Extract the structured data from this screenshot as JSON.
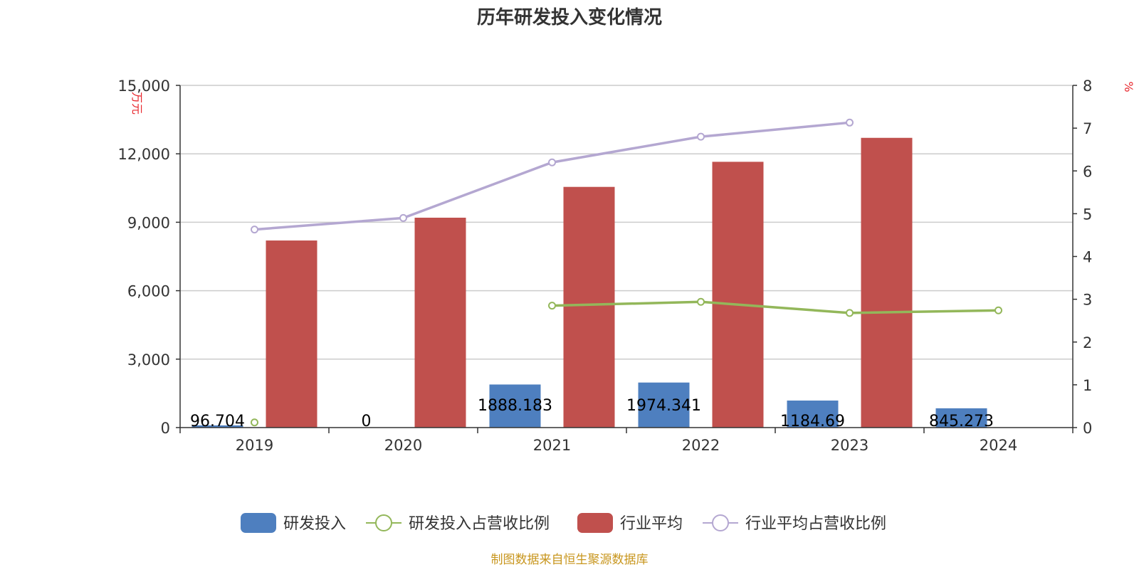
{
  "chart_data": {
    "type": "bar",
    "title": "历年研发投入变化情况",
    "categories": [
      "2019",
      "2020",
      "2021",
      "2022",
      "2023",
      "2024"
    ],
    "y_left": {
      "unit": "万元",
      "ylim": [
        0,
        15000
      ],
      "ticks": [
        0,
        3000,
        6000,
        9000,
        12000,
        15000
      ],
      "tick_labels": [
        "0",
        "3,000",
        "6,000",
        "9,000",
        "12,000",
        "15,000"
      ]
    },
    "y_right": {
      "unit": "%",
      "ylim": [
        0,
        8
      ],
      "ticks": [
        0,
        1,
        2,
        3,
        4,
        5,
        6,
        7,
        8
      ],
      "tick_labels": [
        "0",
        "1",
        "2",
        "3",
        "4",
        "5",
        "6",
        "7",
        "8"
      ]
    },
    "grid": true,
    "legend_position": "bottom",
    "series": [
      {
        "name": "研发投入",
        "type": "bar",
        "axis": "left",
        "color": "#4e7fbf",
        "values": [
          96.704,
          0,
          1888.183,
          1974.341,
          1184.69,
          845.273
        ],
        "data_labels": [
          "96.704",
          "0",
          "1888.183",
          "1974.341",
          "1184.69",
          "845.273"
        ]
      },
      {
        "name": "研发投入占营收比例",
        "type": "line",
        "axis": "right",
        "color": "#93b75a",
        "values": [
          0.12,
          null,
          2.85,
          2.94,
          2.68,
          2.74
        ]
      },
      {
        "name": "行业平均",
        "type": "bar",
        "axis": "left",
        "color": "#c0504d",
        "values": [
          8200,
          9200,
          10550,
          11650,
          12700,
          null
        ]
      },
      {
        "name": "行业平均占营收比例",
        "type": "line",
        "axis": "right",
        "color": "#b4a7d1",
        "values": [
          4.63,
          4.9,
          6.2,
          6.8,
          7.13,
          null
        ]
      }
    ],
    "source": "制图数据来自恒生聚源数据库"
  }
}
